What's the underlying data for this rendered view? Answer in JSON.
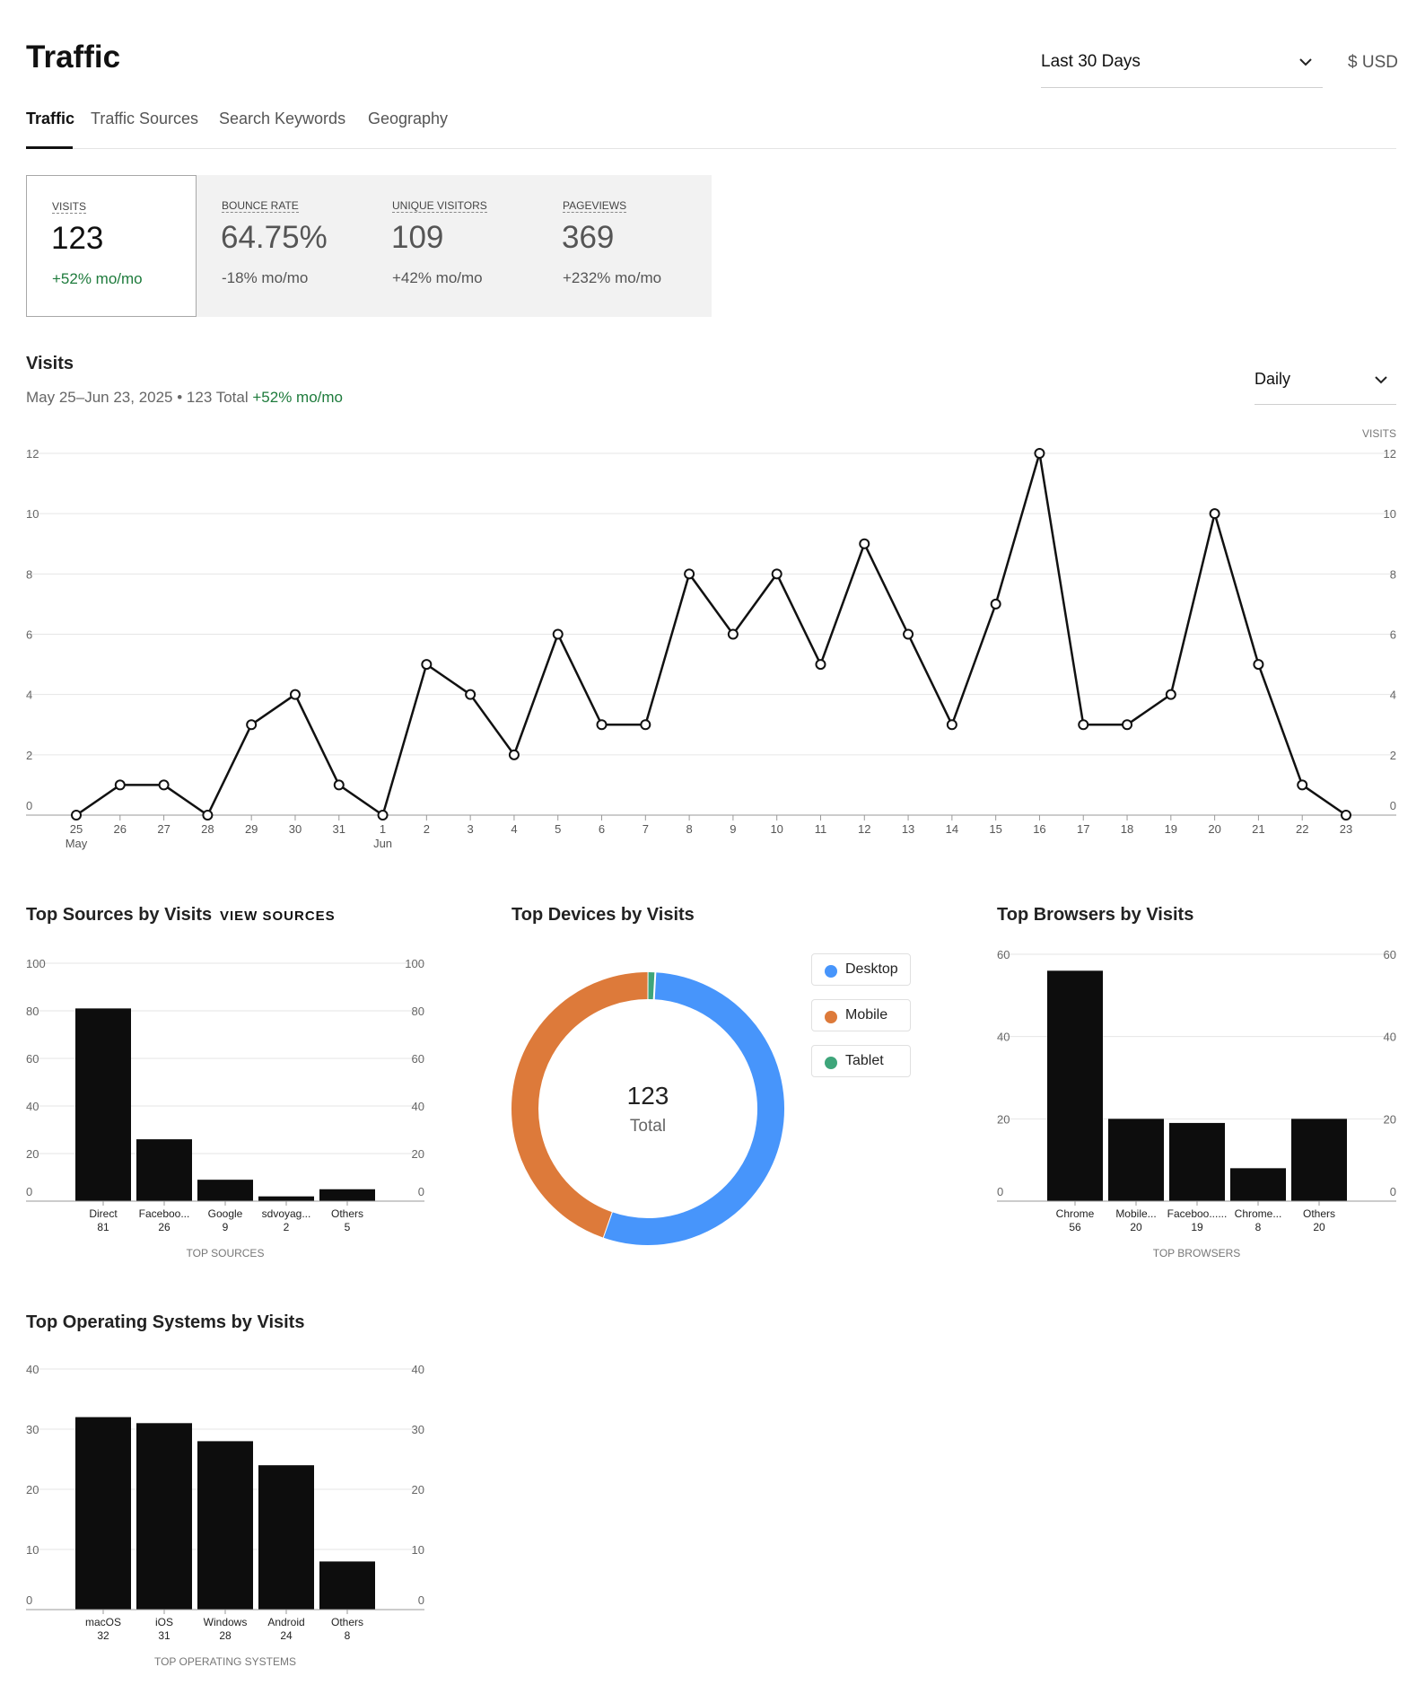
{
  "header": {
    "title": "Traffic",
    "range_value": "Last 30 Days",
    "currency": "$ USD"
  },
  "tabs": [
    {
      "label": "Traffic",
      "active": true
    },
    {
      "label": "Traffic Sources",
      "active": false
    },
    {
      "label": "Search Keywords",
      "active": false
    },
    {
      "label": "Geography",
      "active": false
    }
  ],
  "kpis": [
    {
      "label": "Visits",
      "value": "123",
      "change": "+52% mo/mo",
      "active": true
    },
    {
      "label": "Bounce Rate",
      "value": "64.75%",
      "change": "-18% mo/mo",
      "active": false
    },
    {
      "label": "Unique Visitors",
      "value": "109",
      "change": "+42% mo/mo",
      "active": false
    },
    {
      "label": "Pageviews",
      "value": "369",
      "change": "+232% mo/mo",
      "active": false
    }
  ],
  "visits_section": {
    "title": "Visits",
    "date_range": "May 25–Jun 23, 2025",
    "separator": " • ",
    "total": "123 Total",
    "change": "+52% mo/mo",
    "interval_value": "Daily"
  },
  "colors": {
    "positive": "#1e7b3c",
    "bar": "#0d0d0d",
    "desktop": "#4795fb",
    "mobile": "#dd7a3a",
    "tablet": "#3ea57a"
  },
  "chart_data": [
    {
      "type": "line",
      "axis_label_right": "VISITS",
      "x": [
        "25",
        "26",
        "27",
        "28",
        "29",
        "30",
        "31",
        "1",
        "2",
        "3",
        "4",
        "5",
        "6",
        "7",
        "8",
        "9",
        "10",
        "11",
        "12",
        "13",
        "14",
        "15",
        "16",
        "17",
        "18",
        "19",
        "20",
        "21",
        "22",
        "23"
      ],
      "x_month_labels": [
        {
          "index": 0,
          "label": "May"
        },
        {
          "index": 7,
          "label": "Jun"
        }
      ],
      "values": [
        0,
        1,
        1,
        0,
        3,
        4,
        1,
        0,
        5,
        4,
        2,
        6,
        3,
        3,
        8,
        6,
        8,
        5,
        9,
        6,
        3,
        7,
        12,
        3,
        3,
        4,
        10,
        5,
        1,
        0
      ],
      "ylim": [
        0,
        12
      ],
      "yticks": [
        0,
        2,
        4,
        6,
        8,
        10,
        12
      ],
      "grid": true
    },
    {
      "type": "bar",
      "title": "Top Sources by Visits",
      "action_label": "View Sources",
      "xlabel": "TOP SOURCES",
      "categories": [
        "Direct",
        "Faceboo...",
        "Google",
        "sdvoyag...",
        "Others"
      ],
      "values": [
        81,
        26,
        9,
        2,
        5
      ],
      "ylim": [
        0,
        100
      ],
      "yticks": [
        0,
        20,
        40,
        60,
        80,
        100
      ]
    },
    {
      "type": "pie",
      "title": "Top Devices by Visits",
      "center_value": "123",
      "center_label": "Total",
      "slices": [
        {
          "name": "Desktop",
          "value": 67
        },
        {
          "name": "Mobile",
          "value": 55
        },
        {
          "name": "Tablet",
          "value": 1
        }
      ]
    },
    {
      "type": "bar",
      "title": "Top Browsers by Visits",
      "xlabel": "TOP BROWSERS",
      "categories": [
        "Chrome",
        "Mobile...",
        "Faceboo......",
        "Chrome...",
        "Others"
      ],
      "values": [
        56,
        20,
        19,
        8,
        20
      ],
      "ylim": [
        0,
        60
      ],
      "yticks": [
        0,
        20,
        40,
        60
      ]
    },
    {
      "type": "bar",
      "title": "Top Operating Systems by Visits",
      "xlabel": "TOP OPERATING SYSTEMS",
      "categories": [
        "macOS",
        "iOS",
        "Windows",
        "Android",
        "Others"
      ],
      "values": [
        32,
        31,
        28,
        24,
        8
      ],
      "ylim": [
        0,
        40
      ],
      "yticks": [
        0,
        10,
        20,
        30,
        40
      ]
    }
  ]
}
